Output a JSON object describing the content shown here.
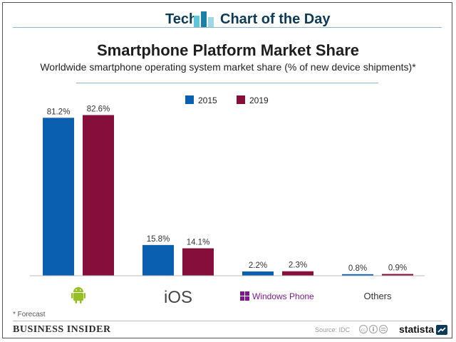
{
  "banner": {
    "left": "Tech",
    "right": "Chart of the Day"
  },
  "chart_data": {
    "type": "bar",
    "title": "Smartphone Platform Market Share",
    "subtitle": "Worldwide smartphone operating system market share (% of new device shipments)*",
    "categories": [
      "Android",
      "iOS",
      "Windows Phone",
      "Others"
    ],
    "category_labels": [
      "",
      "iOS",
      "Windows Phone",
      "Others"
    ],
    "series": [
      {
        "name": "2015",
        "color": "#0a5fb0",
        "values": [
          81.2,
          15.8,
          2.2,
          0.8
        ],
        "labels": [
          "81.2%",
          "15.8%",
          "2.2%",
          "0.8%"
        ]
      },
      {
        "name": "2019",
        "color": "#850f3a",
        "values": [
          82.6,
          14.1,
          2.3,
          0.9
        ],
        "labels": [
          "82.6%",
          "14.1%",
          "2.3%",
          "0.9%"
        ]
      }
    ],
    "ylim": [
      0,
      100
    ],
    "legend_position": "top-center",
    "grid": false
  },
  "colors": {
    "android": "#97c024",
    "windows": "#7a1a8c",
    "banner": "#0b3b57"
  },
  "footnote": "* Forecast",
  "footer": {
    "brand": "BUSINESS INSIDER",
    "source": "Source: IDC",
    "statista": "statista"
  }
}
